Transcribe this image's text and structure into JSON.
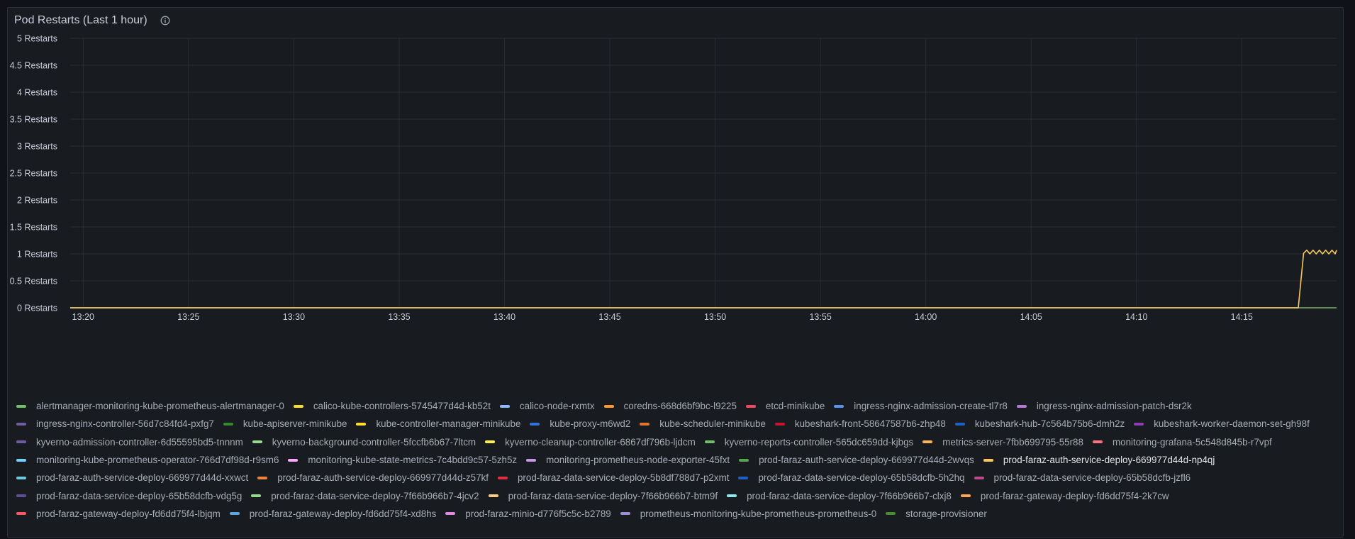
{
  "panel": {
    "title": "Pod Restarts (Last 1 hour)",
    "info_icon": "info-circle-icon"
  },
  "chart_data": {
    "type": "line",
    "title": "Pod Restarts (Last 1 hour)",
    "xlabel": "",
    "ylabel": "",
    "x_ticks": [
      "13:20",
      "13:25",
      "13:30",
      "13:35",
      "13:40",
      "13:45",
      "13:50",
      "13:55",
      "14:00",
      "14:05",
      "14:10",
      "14:15"
    ],
    "y_ticks": [
      "0 Restarts",
      "0.5 Restarts",
      "1 Restarts",
      "1.5 Restarts",
      "2 Restarts",
      "2.5 Restarts",
      "3 Restarts",
      "3.5 Restarts",
      "4 Restarts",
      "4.5 Restarts",
      "5 Restarts"
    ],
    "xlim": [
      "13:19:23",
      "14:19:30"
    ],
    "ylim": [
      0,
      5
    ],
    "grid": true,
    "legend_position": "bottom",
    "series": [
      {
        "name": "alertmanager-monitoring-kube-prometheus-alertmanager-0",
        "color": "#73bf69",
        "x": [
          "13:19:23",
          "14:19:30"
        ],
        "values": [
          0,
          0
        ]
      },
      {
        "name": "calico-kube-controllers-5745477d4d-kb52t",
        "color": "#fade2a",
        "x": [
          "13:19:23",
          "14:19:30"
        ],
        "values": [
          0,
          0
        ]
      },
      {
        "name": "calico-node-rxmtx",
        "color": "#8ab8ff",
        "x": [
          "13:19:23",
          "14:19:30"
        ],
        "values": [
          0,
          0
        ]
      },
      {
        "name": "coredns-668d6bf9bc-l9225",
        "color": "#ff9830",
        "x": [
          "13:19:23",
          "14:19:30"
        ],
        "values": [
          0,
          0
        ]
      },
      {
        "name": "etcd-minikube",
        "color": "#f2495c",
        "x": [
          "13:19:23",
          "14:19:30"
        ],
        "values": [
          0,
          0
        ]
      },
      {
        "name": "ingress-nginx-admission-create-tl7r8",
        "color": "#5794f2",
        "x": [
          "13:19:23",
          "14:19:30"
        ],
        "values": [
          0,
          0
        ]
      },
      {
        "name": "ingress-nginx-admission-patch-dsr2k",
        "color": "#b877d9",
        "x": [
          "13:19:23",
          "14:19:30"
        ],
        "values": [
          0,
          0
        ]
      },
      {
        "name": "ingress-nginx-controller-56d7c84fd4-pxfg7",
        "color": "#705da0",
        "x": [
          "13:19:23",
          "14:19:30"
        ],
        "values": [
          0,
          0
        ]
      },
      {
        "name": "kube-apiserver-minikube",
        "color": "#37872d",
        "x": [
          "13:19:23",
          "14:19:30"
        ],
        "values": [
          0,
          0
        ]
      },
      {
        "name": "kube-controller-manager-minikube",
        "color": "#fade2a",
        "x": [
          "13:19:23",
          "14:19:30"
        ],
        "values": [
          0,
          0
        ]
      },
      {
        "name": "kube-proxy-m6wd2",
        "color": "#3274d9",
        "x": [
          "13:19:23",
          "14:19:30"
        ],
        "values": [
          0,
          0
        ]
      },
      {
        "name": "kube-scheduler-minikube",
        "color": "#e0752d",
        "x": [
          "13:19:23",
          "14:19:30"
        ],
        "values": [
          0,
          0
        ]
      },
      {
        "name": "kubeshark-front-58647587b6-zhp48",
        "color": "#c4162a",
        "x": [
          "13:19:23",
          "14:19:30"
        ],
        "values": [
          0,
          0
        ]
      },
      {
        "name": "kubeshark-hub-7c564b75b6-dmh2z",
        "color": "#1f60c4",
        "x": [
          "13:19:23",
          "14:19:30"
        ],
        "values": [
          0,
          0
        ]
      },
      {
        "name": "kubeshark-worker-daemon-set-gh98f",
        "color": "#8f3bb8",
        "x": [
          "13:19:23",
          "14:19:30"
        ],
        "values": [
          0,
          0
        ]
      },
      {
        "name": "kyverno-admission-controller-6d55595bd5-tnnnm",
        "color": "#705da0",
        "x": [
          "13:19:23",
          "14:19:30"
        ],
        "values": [
          0,
          0
        ]
      },
      {
        "name": "kyverno-background-controller-5fccfb6b67-7ltcm",
        "color": "#96d98d",
        "x": [
          "13:19:23",
          "14:19:30"
        ],
        "values": [
          0,
          0
        ]
      },
      {
        "name": "kyverno-cleanup-controller-6867df796b-ljdcm",
        "color": "#ffee52",
        "x": [
          "13:19:23",
          "14:19:30"
        ],
        "values": [
          0,
          0
        ]
      },
      {
        "name": "kyverno-reports-controller-565dc659dd-kjbgs",
        "color": "#73bf69",
        "x": [
          "13:19:23",
          "14:19:30"
        ],
        "values": [
          0,
          0
        ]
      },
      {
        "name": "metrics-server-7fbb699795-55r88",
        "color": "#ffb357",
        "x": [
          "13:19:23",
          "14:19:30"
        ],
        "values": [
          0,
          0
        ]
      },
      {
        "name": "monitoring-grafana-5c548d845b-r7vpf",
        "color": "#ff7383",
        "x": [
          "13:19:23",
          "14:19:30"
        ],
        "values": [
          0,
          0
        ]
      },
      {
        "name": "monitoring-kube-prometheus-operator-766d7df98d-r9sm6",
        "color": "#73d0ff",
        "x": [
          "13:19:23",
          "14:19:30"
        ],
        "values": [
          0,
          0
        ]
      },
      {
        "name": "monitoring-kube-state-metrics-7c4bdd9c57-5zh5z",
        "color": "#ffa6ff",
        "x": [
          "13:19:23",
          "14:19:30"
        ],
        "values": [
          0,
          0
        ]
      },
      {
        "name": "monitoring-prometheus-node-exporter-45fxt",
        "color": "#ca95e5",
        "x": [
          "13:19:23",
          "14:19:30"
        ],
        "values": [
          0,
          0
        ]
      },
      {
        "name": "prod-faraz-auth-service-deploy-669977d44d-2wvqs",
        "color": "#56a64b",
        "x": [
          "13:19:23",
          "14:19:30"
        ],
        "values": [
          0,
          0
        ]
      },
      {
        "name": "prod-faraz-auth-service-deploy-669977d44d-np4qj",
        "color": "#fac858",
        "active": true,
        "x": [
          "13:19:23",
          "14:17:41",
          "14:17:56",
          "14:18:05",
          "14:18:14",
          "14:18:23",
          "14:18:32",
          "14:18:41",
          "14:18:50",
          "14:18:59",
          "14:19:08",
          "14:19:17",
          "14:19:26",
          "14:19:30"
        ],
        "values": [
          0,
          0,
          1.01,
          1.07,
          1.0,
          1.07,
          1.0,
          1.07,
          1.0,
          1.07,
          1.0,
          1.07,
          1.0,
          1.07
        ]
      },
      {
        "name": "prod-faraz-auth-service-deploy-669977d44d-xxwct",
        "color": "#6ccadc",
        "x": [
          "13:19:23",
          "14:19:30"
        ],
        "values": [
          0,
          0
        ]
      },
      {
        "name": "prod-faraz-auth-service-deploy-669977d44d-z57kf",
        "color": "#ef843c",
        "x": [
          "13:19:23",
          "14:19:30"
        ],
        "values": [
          0,
          0
        ]
      },
      {
        "name": "prod-faraz-data-service-deploy-5b8df788d7-p2xmt",
        "color": "#e02f44",
        "x": [
          "13:19:23",
          "14:19:30"
        ],
        "values": [
          0,
          0
        ]
      },
      {
        "name": "prod-faraz-data-service-deploy-65b58dcfb-5h2hq",
        "color": "#1f60c4",
        "x": [
          "13:19:23",
          "14:19:30"
        ],
        "values": [
          0,
          0
        ]
      },
      {
        "name": "prod-faraz-data-service-deploy-65b58dcfb-jzfl6",
        "color": "#ba4a8c",
        "x": [
          "13:19:23",
          "14:19:30"
        ],
        "values": [
          0,
          0
        ]
      },
      {
        "name": "prod-faraz-data-service-deploy-65b58dcfb-vdg5g",
        "color": "#614d93",
        "x": [
          "13:19:23",
          "14:19:30"
        ],
        "values": [
          0,
          0
        ]
      },
      {
        "name": "prod-faraz-data-service-deploy-7f66b966b7-4jcv2",
        "color": "#96d98d",
        "x": [
          "13:19:23",
          "14:19:30"
        ],
        "values": [
          0,
          0
        ]
      },
      {
        "name": "prod-faraz-data-service-deploy-7f66b966b7-btm9f",
        "color": "#ffcb7d",
        "x": [
          "13:19:23",
          "14:19:30"
        ],
        "values": [
          0,
          0
        ]
      },
      {
        "name": "prod-faraz-data-service-deploy-7f66b966b7-clxj8",
        "color": "#8ae8f0",
        "x": [
          "13:19:23",
          "14:19:30"
        ],
        "values": [
          0,
          0
        ]
      },
      {
        "name": "prod-faraz-gateway-deploy-fd6dd75f4-2k7cw",
        "color": "#ffa357",
        "x": [
          "13:19:23",
          "14:19:30"
        ],
        "values": [
          0,
          0
        ]
      },
      {
        "name": "prod-faraz-gateway-deploy-fd6dd75f4-lbjqm",
        "color": "#f55a62",
        "x": [
          "13:19:23",
          "14:19:30"
        ],
        "values": [
          0,
          0
        ]
      },
      {
        "name": "prod-faraz-gateway-deploy-fd6dd75f4-xd8hs",
        "color": "#5ea6e3",
        "x": [
          "13:19:23",
          "14:19:30"
        ],
        "values": [
          0,
          0
        ]
      },
      {
        "name": "prod-faraz-minio-d776f5c5c-b2789",
        "color": "#e08ae3",
        "x": [
          "13:19:23",
          "14:19:30"
        ],
        "values": [
          0,
          0
        ]
      },
      {
        "name": "prometheus-monitoring-kube-prometheus-prometheus-0",
        "color": "#9c8fd6",
        "x": [
          "13:19:23",
          "14:19:30"
        ],
        "values": [
          0,
          0
        ]
      },
      {
        "name": "storage-provisioner",
        "color": "#4c8a30",
        "x": [
          "13:19:23",
          "14:19:30"
        ],
        "values": [
          0,
          0
        ]
      }
    ]
  }
}
